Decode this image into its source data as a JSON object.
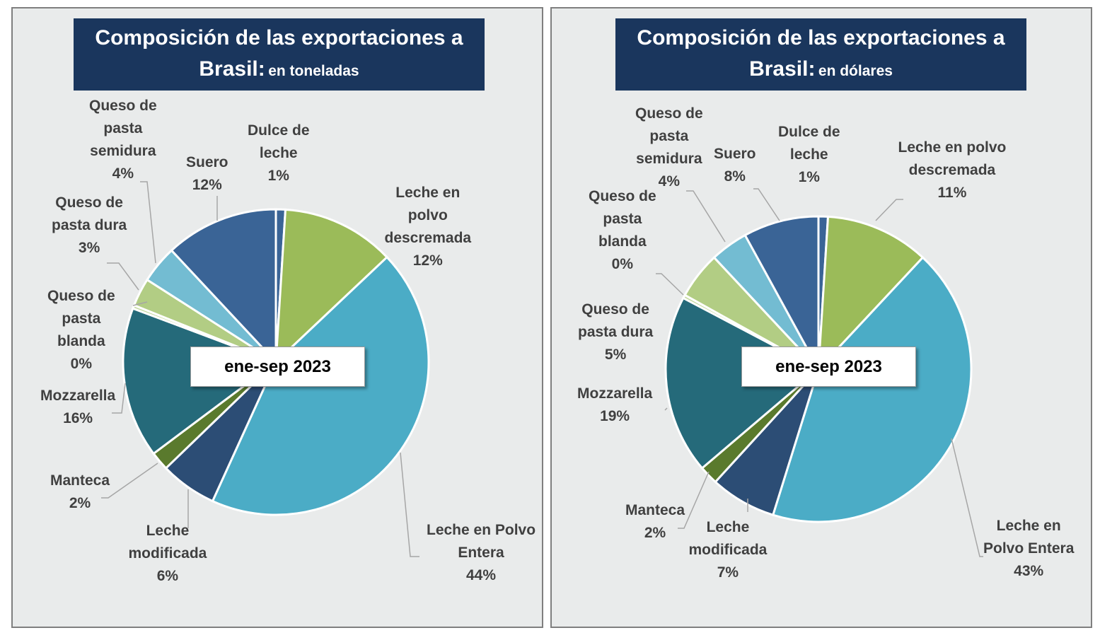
{
  "center_label": "ene-sep 2023",
  "colors": {
    "panel_bg": "#e9ebeb",
    "title_bg": "#1a365d",
    "slices": [
      "#3a6496",
      "#9bbb59",
      "#4bacc6",
      "#2c4d75",
      "#5a7a2d",
      "#256a7a",
      "#b2cd84",
      "#73bcd2",
      "#3a6496"
    ]
  },
  "chart_data": [
    {
      "type": "pie",
      "title": "Composición de las exportaciones a Brasil:",
      "title_line1": "Composición de las exportaciones a",
      "title_line2": "Brasil:",
      "subtitle": "en toneladas",
      "categories": [
        "Dulce de leche",
        "Leche en polvo descremada",
        "Leche en Polvo Entera",
        "Leche modificada",
        "Manteca",
        "Mozzarella",
        "Queso de pasta blanda",
        "Queso de pasta dura",
        "Queso de pasta semidura",
        "Suero"
      ],
      "values": [
        1,
        12,
        44,
        6,
        2,
        16,
        0,
        3,
        4,
        12
      ],
      "labels": [
        {
          "name": "Dulce de\nleche",
          "pct": "1%"
        },
        {
          "name": "Leche en\npolvo\ndescremada",
          "pct": "12%"
        },
        {
          "name": "Leche en Polvo\nEntera",
          "pct": "44%"
        },
        {
          "name": "Leche\nmodificada",
          "pct": "6%"
        },
        {
          "name": "Manteca",
          "pct": "2%"
        },
        {
          "name": "Mozzarella",
          "pct": "16%"
        },
        {
          "name": "Queso de\npasta\nblanda",
          "pct": "0%"
        },
        {
          "name": "Queso de\npasta dura",
          "pct": "3%"
        },
        {
          "name": "Queso de\npasta\nsemidura",
          "pct": "4%"
        },
        {
          "name": "Suero",
          "pct": "12%"
        }
      ]
    },
    {
      "type": "pie",
      "title": "Composición de las exportaciones a Brasil:",
      "title_line1": "Composición de las exportaciones a",
      "title_line2": "Brasil:",
      "subtitle": "en dólares",
      "categories": [
        "Dulce de leche",
        "Leche en polvo descremada",
        "Leche en Polvo Entera",
        "Leche modificada",
        "Manteca",
        "Mozzarella",
        "Queso de pasta blanda",
        "Queso de pasta dura",
        "Queso de pasta semidura",
        "Suero"
      ],
      "values": [
        1,
        11,
        43,
        7,
        2,
        19,
        0,
        5,
        4,
        8
      ],
      "labels": [
        {
          "name": "Dulce de\nleche",
          "pct": "1%"
        },
        {
          "name": "Leche en polvo\ndescremada",
          "pct": "11%"
        },
        {
          "name": "Leche en\nPolvo Entera",
          "pct": "43%"
        },
        {
          "name": "Leche\nmodificada",
          "pct": "7%"
        },
        {
          "name": "Manteca",
          "pct": "2%"
        },
        {
          "name": "Mozzarella",
          "pct": "19%"
        },
        {
          "name": "Queso de\npasta\nblanda",
          "pct": "0%"
        },
        {
          "name": "Queso de\npasta dura",
          "pct": "5%"
        },
        {
          "name": "Queso de\npasta\nsemidura",
          "pct": "4%"
        },
        {
          "name": "Suero",
          "pct": "8%"
        }
      ]
    }
  ]
}
